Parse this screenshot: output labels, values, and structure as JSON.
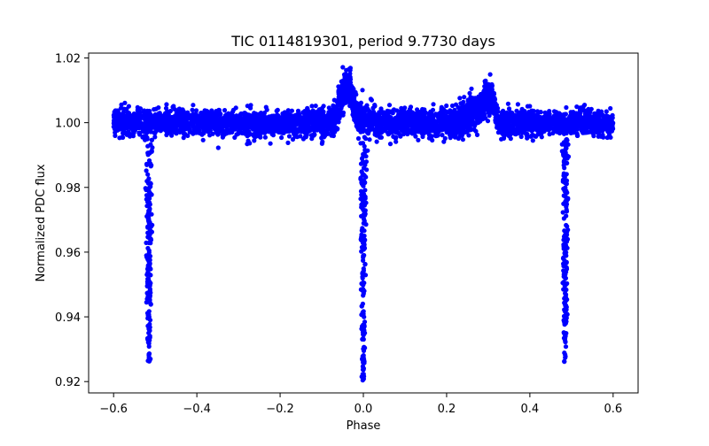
{
  "chart_data": {
    "type": "scatter",
    "title": "TIC 0114819301, period 9.7730 days",
    "xlabel": "Phase",
    "ylabel": "Normalized PDC flux",
    "xlim": [
      -0.66,
      0.66
    ],
    "ylim": [
      0.9165,
      1.0215
    ],
    "xticks": [
      -0.6,
      -0.4,
      -0.2,
      0.0,
      0.2,
      0.4,
      0.6
    ],
    "xtick_labels": [
      "−0.6",
      "−0.4",
      "−0.2",
      "0.0",
      "0.2",
      "0.4",
      "0.6"
    ],
    "yticks": [
      0.92,
      0.94,
      0.96,
      0.98,
      1.0,
      1.02
    ],
    "ytick_labels": [
      "0.92",
      "0.94",
      "0.96",
      "0.98",
      "1.00",
      "1.02"
    ],
    "grid": false,
    "marker_color": "#0000ff",
    "series": [
      {
        "name": "PDC flux",
        "description": "phase-folded light curve",
        "baseline_flux": 1.0,
        "baseline_scatter": 0.002,
        "phase_range": [
          -0.6,
          0.6
        ],
        "eclipses": [
          {
            "center_phase": -0.515,
            "min_flux": 0.926
          },
          {
            "center_phase": 0.0,
            "min_flux": 0.92
          },
          {
            "center_phase": 0.485,
            "min_flux": 0.926
          }
        ],
        "features": [
          {
            "phase": -0.04,
            "peak_flux": 1.016
          },
          {
            "phase": 0.31,
            "peak_flux": 1.015
          }
        ]
      }
    ]
  }
}
